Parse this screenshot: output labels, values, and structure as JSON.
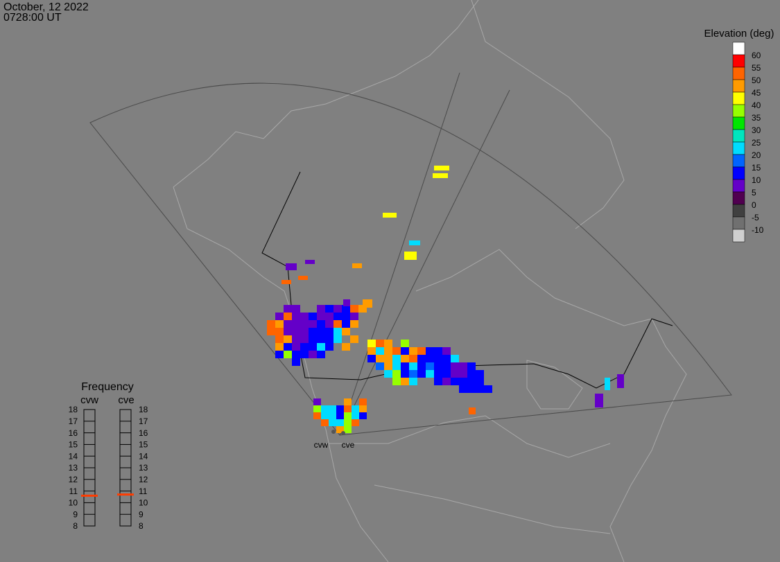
{
  "header": {
    "date": "October, 12 2022",
    "time": "0728:00 UT"
  },
  "legend": {
    "title": "Elevation (deg)",
    "levels": [
      60,
      55,
      50,
      45,
      40,
      35,
      30,
      25,
      20,
      15,
      10,
      5,
      0,
      -5,
      -10
    ],
    "colors": [
      "#ffffff",
      "#ff0000",
      "#ff6400",
      "#ff9b00",
      "#ffff00",
      "#96ff00",
      "#00e600",
      "#00e6be",
      "#00dcff",
      "#0064ff",
      "#0000ff",
      "#6400c8",
      "#500050",
      "#404040",
      "#707070",
      "#d0d0d0"
    ]
  },
  "frequency": {
    "title": "Frequency",
    "ticks": [
      18,
      17,
      16,
      15,
      14,
      13,
      12,
      11,
      10,
      9,
      8
    ],
    "radars": [
      {
        "name": "cvw",
        "value": 10.6
      },
      {
        "name": "cve",
        "value": 10.7
      }
    ],
    "color": "#ff3c00"
  },
  "stations": [
    "cvw",
    "cve"
  ],
  "cells": {
    "a": [
      [
        null,
        null,
        7,
        7,
        null,
        null,
        7,
        12,
        7,
        12,
        52,
        47
      ],
      [
        null,
        7,
        52,
        7,
        7,
        12,
        7,
        7,
        12,
        12,
        7,
        null
      ],
      [
        52,
        47,
        7,
        7,
        7,
        7,
        12,
        7,
        52,
        12,
        47,
        null
      ],
      [
        52,
        52,
        7,
        7,
        7,
        12,
        12,
        12,
        22,
        47,
        null,
        null
      ],
      [
        null,
        52,
        47,
        7,
        7,
        12,
        12,
        12,
        22,
        null,
        47,
        null
      ],
      [
        null,
        47,
        12,
        7,
        12,
        12,
        22,
        12,
        null,
        47,
        null,
        null
      ],
      [
        null,
        12,
        37,
        12,
        12,
        7,
        12,
        null,
        null,
        null,
        null,
        null
      ],
      [
        null,
        null,
        null,
        12,
        null,
        null,
        null,
        null,
        null,
        null,
        null,
        null
      ]
    ],
    "b": [
      [
        42,
        52,
        47,
        null,
        37,
        null,
        null,
        null,
        null,
        null,
        null,
        null,
        null,
        null,
        null
      ],
      [
        47,
        22,
        47,
        52,
        12,
        47,
        52,
        12,
        12,
        7,
        null,
        null,
        null,
        null,
        null
      ],
      [
        12,
        47,
        47,
        22,
        47,
        52,
        12,
        12,
        12,
        12,
        22,
        null,
        null,
        null,
        null
      ],
      [
        null,
        17,
        47,
        22,
        12,
        22,
        12,
        17,
        12,
        12,
        7,
        7,
        12,
        null,
        null
      ],
      [
        null,
        null,
        22,
        37,
        12,
        17,
        12,
        22,
        12,
        12,
        7,
        7,
        12,
        12,
        null
      ],
      [
        null,
        null,
        null,
        37,
        47,
        22,
        null,
        null,
        12,
        7,
        12,
        12,
        12,
        12,
        null
      ],
      [
        null,
        null,
        null,
        null,
        null,
        null,
        null,
        null,
        null,
        null,
        null,
        12,
        12,
        12,
        12
      ]
    ],
    "c": [
      [
        7,
        null,
        null,
        null,
        47,
        null,
        52,
        null
      ],
      [
        37,
        22,
        22,
        12,
        52,
        22,
        47,
        null
      ],
      [
        52,
        22,
        22,
        12,
        37,
        22,
        12,
        null
      ],
      [
        null,
        52,
        22,
        22,
        37,
        52,
        null,
        null
      ],
      [
        null,
        null,
        null,
        47,
        37,
        null,
        null,
        null
      ]
    ],
    "single": [
      42,
      42,
      40,
      22,
      40,
      47,
      7,
      7,
      52,
      52,
      47,
      7,
      7,
      22,
      7,
      52
    ]
  }
}
